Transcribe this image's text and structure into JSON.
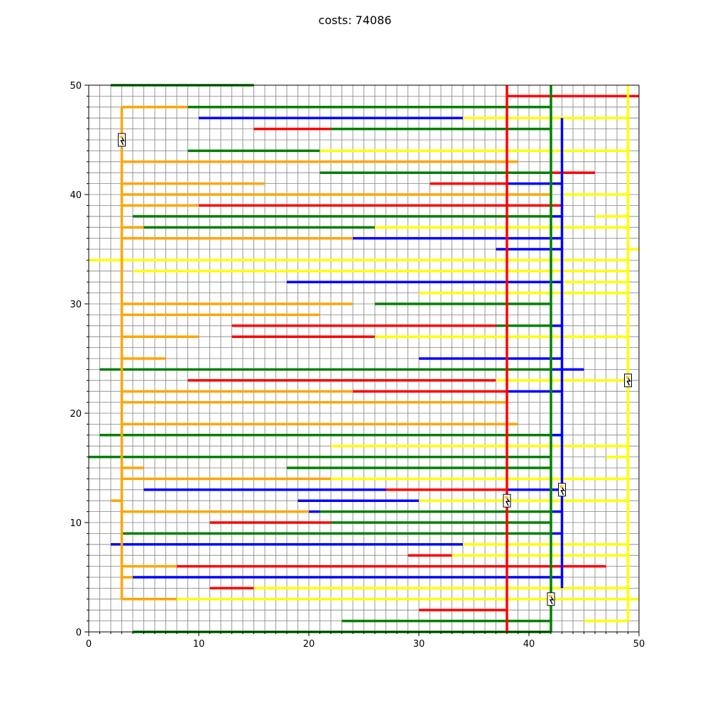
{
  "chart_data": {
    "type": "line",
    "title": "costs: 74086",
    "xlim": [
      0,
      50
    ],
    "ylim": [
      0,
      50
    ],
    "xticks": [
      "0",
      "10",
      "20",
      "30",
      "40",
      "50"
    ],
    "yticks": [
      "0",
      "10",
      "20",
      "30",
      "40",
      "50"
    ],
    "grid": true,
    "colors": {
      "orange": "#ffa500",
      "green": "#008000",
      "blue": "#0000ff",
      "red": "#ff0000",
      "yellow": "#ffff00"
    },
    "trunks": [
      {
        "color": "orange",
        "x": 3,
        "y0": 3,
        "y1": 48
      },
      {
        "color": "red",
        "x": 38,
        "y0": 0,
        "y1": 50
      },
      {
        "color": "green",
        "x": 42,
        "y0": 0,
        "y1": 50
      },
      {
        "color": "blue",
        "x": 43,
        "y0": 4,
        "y1": 47
      },
      {
        "color": "yellow",
        "x": 49,
        "y0": 1,
        "y1": 50
      }
    ],
    "segments": [
      {
        "color": "green",
        "x0": 2,
        "x1": 15,
        "y": 50
      },
      {
        "color": "red",
        "x0": 38,
        "x1": 50,
        "y": 49
      },
      {
        "color": "orange",
        "x0": 3,
        "x1": 9,
        "y": 48
      },
      {
        "color": "green",
        "x0": 9,
        "x1": 42,
        "y": 48
      },
      {
        "color": "blue",
        "x0": 10,
        "x1": 34,
        "y": 47
      },
      {
        "color": "yellow",
        "x0": 34,
        "x1": 49,
        "y": 47
      },
      {
        "color": "red",
        "x0": 15,
        "x1": 22,
        "y": 46
      },
      {
        "color": "green",
        "x0": 22,
        "x1": 42,
        "y": 46
      },
      {
        "color": "green",
        "x0": 9,
        "x1": 21,
        "y": 44
      },
      {
        "color": "yellow",
        "x0": 21,
        "x1": 49,
        "y": 44
      },
      {
        "color": "orange",
        "x0": 3,
        "x1": 39,
        "y": 43
      },
      {
        "color": "green",
        "x0": 21,
        "x1": 42,
        "y": 42
      },
      {
        "color": "red",
        "x0": 42,
        "x1": 46,
        "y": 42
      },
      {
        "color": "orange",
        "x0": 3,
        "x1": 16,
        "y": 41
      },
      {
        "color": "red",
        "x0": 31,
        "x1": 38,
        "y": 41
      },
      {
        "color": "blue",
        "x0": 38,
        "x1": 43,
        "y": 41
      },
      {
        "color": "orange",
        "x0": 3,
        "x1": 42,
        "y": 40
      },
      {
        "color": "yellow",
        "x0": 43,
        "x1": 49,
        "y": 40
      },
      {
        "color": "orange",
        "x0": 3,
        "x1": 10,
        "y": 39
      },
      {
        "color": "red",
        "x0": 10,
        "x1": 43,
        "y": 39
      },
      {
        "color": "green",
        "x0": 4,
        "x1": 42,
        "y": 38
      },
      {
        "color": "blue",
        "x0": 42,
        "x1": 43,
        "y": 38
      },
      {
        "color": "yellow",
        "x0": 46,
        "x1": 49,
        "y": 38
      },
      {
        "color": "orange",
        "x0": 3,
        "x1": 5,
        "y": 37
      },
      {
        "color": "green",
        "x0": 5,
        "x1": 26,
        "y": 37
      },
      {
        "color": "yellow",
        "x0": 26,
        "x1": 49,
        "y": 37
      },
      {
        "color": "orange",
        "x0": 3,
        "x1": 24,
        "y": 36
      },
      {
        "color": "blue",
        "x0": 24,
        "x1": 43,
        "y": 36
      },
      {
        "color": "blue",
        "x0": 37,
        "x1": 43,
        "y": 35
      },
      {
        "color": "yellow",
        "x0": 49,
        "x1": 50,
        "y": 35
      },
      {
        "color": "yellow",
        "x0": 0,
        "x1": 49,
        "y": 34
      },
      {
        "color": "yellow",
        "x0": 4,
        "x1": 49,
        "y": 33
      },
      {
        "color": "blue",
        "x0": 18,
        "x1": 43,
        "y": 32
      },
      {
        "color": "yellow",
        "x0": 43,
        "x1": 49,
        "y": 32
      },
      {
        "color": "yellow",
        "x0": 30,
        "x1": 49,
        "y": 31
      },
      {
        "color": "orange",
        "x0": 3,
        "x1": 24,
        "y": 30
      },
      {
        "color": "green",
        "x0": 26,
        "x1": 42,
        "y": 30
      },
      {
        "color": "orange",
        "x0": 3,
        "x1": 21,
        "y": 29
      },
      {
        "color": "red",
        "x0": 13,
        "x1": 37,
        "y": 28
      },
      {
        "color": "green",
        "x0": 37,
        "x1": 42,
        "y": 28
      },
      {
        "color": "blue",
        "x0": 42,
        "x1": 43,
        "y": 28
      },
      {
        "color": "orange",
        "x0": 3,
        "x1": 10,
        "y": 27
      },
      {
        "color": "red",
        "x0": 13,
        "x1": 26,
        "y": 27
      },
      {
        "color": "yellow",
        "x0": 26,
        "x1": 49,
        "y": 27
      },
      {
        "color": "orange",
        "x0": 3,
        "x1": 7,
        "y": 25
      },
      {
        "color": "blue",
        "x0": 30,
        "x1": 43,
        "y": 25
      },
      {
        "color": "green",
        "x0": 1,
        "x1": 42,
        "y": 24
      },
      {
        "color": "blue",
        "x0": 42,
        "x1": 45,
        "y": 24
      },
      {
        "color": "red",
        "x0": 9,
        "x1": 37,
        "y": 23
      },
      {
        "color": "yellow",
        "x0": 37,
        "x1": 49,
        "y": 23
      },
      {
        "color": "orange",
        "x0": 3,
        "x1": 24,
        "y": 22
      },
      {
        "color": "red",
        "x0": 24,
        "x1": 38,
        "y": 22
      },
      {
        "color": "blue",
        "x0": 38,
        "x1": 43,
        "y": 22
      },
      {
        "color": "orange",
        "x0": 3,
        "x1": 38,
        "y": 21
      },
      {
        "color": "orange",
        "x0": 3,
        "x1": 39,
        "y": 19
      },
      {
        "color": "green",
        "x0": 1,
        "x1": 42,
        "y": 18
      },
      {
        "color": "blue",
        "x0": 42,
        "x1": 43,
        "y": 18
      },
      {
        "color": "yellow",
        "x0": 22,
        "x1": 49,
        "y": 17
      },
      {
        "color": "green",
        "x0": 0,
        "x1": 42,
        "y": 16
      },
      {
        "color": "yellow",
        "x0": 47,
        "x1": 49,
        "y": 16
      },
      {
        "color": "orange",
        "x0": 3,
        "x1": 5,
        "y": 15
      },
      {
        "color": "green",
        "x0": 18,
        "x1": 42,
        "y": 15
      },
      {
        "color": "orange",
        "x0": 3,
        "x1": 22,
        "y": 14
      },
      {
        "color": "yellow",
        "x0": 22,
        "x1": 49,
        "y": 14
      },
      {
        "color": "blue",
        "x0": 5,
        "x1": 27,
        "y": 13
      },
      {
        "color": "red",
        "x0": 27,
        "x1": 38,
        "y": 13
      },
      {
        "color": "blue",
        "x0": 38,
        "x1": 43,
        "y": 13
      },
      {
        "color": "orange",
        "x0": 2,
        "x1": 3,
        "y": 12
      },
      {
        "color": "blue",
        "x0": 19,
        "x1": 30,
        "y": 12
      },
      {
        "color": "yellow",
        "x0": 30,
        "x1": 49,
        "y": 12
      },
      {
        "color": "orange",
        "x0": 3,
        "x1": 20,
        "y": 11
      },
      {
        "color": "blue",
        "x0": 20,
        "x1": 21,
        "y": 11
      },
      {
        "color": "green",
        "x0": 21,
        "x1": 42,
        "y": 11
      },
      {
        "color": "blue",
        "x0": 42,
        "x1": 43,
        "y": 11
      },
      {
        "color": "red",
        "x0": 11,
        "x1": 22,
        "y": 10
      },
      {
        "color": "green",
        "x0": 22,
        "x1": 42,
        "y": 10
      },
      {
        "color": "green",
        "x0": 3,
        "x1": 42,
        "y": 9
      },
      {
        "color": "blue",
        "x0": 42,
        "x1": 43,
        "y": 9
      },
      {
        "color": "blue",
        "x0": 2,
        "x1": 34,
        "y": 8
      },
      {
        "color": "yellow",
        "x0": 34,
        "x1": 49,
        "y": 8
      },
      {
        "color": "red",
        "x0": 29,
        "x1": 33,
        "y": 7
      },
      {
        "color": "yellow",
        "x0": 33,
        "x1": 49,
        "y": 7
      },
      {
        "color": "orange",
        "x0": 3,
        "x1": 8,
        "y": 6
      },
      {
        "color": "red",
        "x0": 8,
        "x1": 47,
        "y": 6
      },
      {
        "color": "orange",
        "x0": 3,
        "x1": 4,
        "y": 5
      },
      {
        "color": "blue",
        "x0": 4,
        "x1": 43,
        "y": 5
      },
      {
        "color": "red",
        "x0": 11,
        "x1": 15,
        "y": 4
      },
      {
        "color": "yellow",
        "x0": 15,
        "x1": 49,
        "y": 4
      },
      {
        "color": "orange",
        "x0": 3,
        "x1": 8,
        "y": 3
      },
      {
        "color": "yellow",
        "x0": 8,
        "x1": 50,
        "y": 3
      },
      {
        "color": "red",
        "x0": 30,
        "x1": 38,
        "y": 2
      },
      {
        "color": "green",
        "x0": 23,
        "x1": 42,
        "y": 1
      },
      {
        "color": "yellow",
        "x0": 45,
        "x1": 49,
        "y": 1
      },
      {
        "color": "green",
        "x0": 4,
        "x1": 42,
        "y": 0
      }
    ],
    "markers": [
      {
        "icon": "plug-icon",
        "x": 3,
        "y": 45
      },
      {
        "icon": "plug-icon",
        "x": 49,
        "y": 23
      },
      {
        "icon": "plug-icon",
        "x": 43,
        "y": 13
      },
      {
        "icon": "plug-icon",
        "x": 38,
        "y": 12
      },
      {
        "icon": "plug-icon",
        "x": 42,
        "y": 3
      }
    ]
  }
}
